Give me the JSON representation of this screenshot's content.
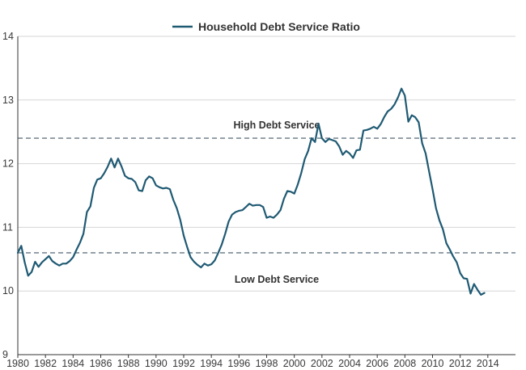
{
  "chart_data": {
    "type": "line",
    "title": "",
    "xlabel": "",
    "ylabel": "",
    "xlim": [
      1980,
      2016
    ],
    "ylim": [
      9,
      14
    ],
    "grid": true,
    "legend": "top-center",
    "x_ticks": [
      "1980",
      "1982",
      "1984",
      "1986",
      "1988",
      "1990",
      "1992",
      "1994",
      "1996",
      "1998",
      "2000",
      "2002",
      "2004",
      "2006",
      "2008",
      "2010",
      "2012",
      "2014"
    ],
    "y_ticks": [
      "9",
      "10",
      "11",
      "12",
      "13",
      "14"
    ],
    "colors": {
      "series": "#1f5a73",
      "reference": "#7d8b96",
      "grid": "#d6d6d6",
      "axis": "#333333"
    },
    "series": [
      {
        "name": "Household Debt Service Ratio",
        "x": [
          1980.0,
          1980.25,
          1980.5,
          1980.75,
          1981.0,
          1981.25,
          1981.5,
          1981.75,
          1982.0,
          1982.25,
          1982.5,
          1982.75,
          1983.0,
          1983.25,
          1983.5,
          1983.75,
          1984.0,
          1984.25,
          1984.5,
          1984.75,
          1985.0,
          1985.25,
          1985.5,
          1985.75,
          1986.0,
          1986.25,
          1986.5,
          1986.75,
          1987.0,
          1987.25,
          1987.5,
          1987.75,
          1988.0,
          1988.25,
          1988.5,
          1988.75,
          1989.0,
          1989.25,
          1989.5,
          1989.75,
          1990.0,
          1990.25,
          1990.5,
          1990.75,
          1991.0,
          1991.25,
          1991.5,
          1991.75,
          1992.0,
          1992.25,
          1992.5,
          1992.75,
          1993.0,
          1993.25,
          1993.5,
          1993.75,
          1994.0,
          1994.25,
          1994.5,
          1994.75,
          1995.0,
          1995.25,
          1995.5,
          1995.75,
          1996.0,
          1996.25,
          1996.5,
          1996.75,
          1997.0,
          1997.25,
          1997.5,
          1997.75,
          1998.0,
          1998.25,
          1998.5,
          1998.75,
          1999.0,
          1999.25,
          1999.5,
          1999.75,
          2000.0,
          2000.25,
          2000.5,
          2000.75,
          2001.0,
          2001.25,
          2001.5,
          2001.75,
          2002.0,
          2002.25,
          2002.5,
          2002.75,
          2003.0,
          2003.25,
          2003.5,
          2003.75,
          2004.0,
          2004.25,
          2004.5,
          2004.75,
          2005.0,
          2005.25,
          2005.5,
          2005.75,
          2006.0,
          2006.25,
          2006.5,
          2006.75,
          2007.0,
          2007.25,
          2007.5,
          2007.75,
          2008.0,
          2008.25,
          2008.5,
          2008.75,
          2009.0,
          2009.25,
          2009.5,
          2009.75,
          2010.0,
          2010.25,
          2010.5,
          2010.75,
          2011.0,
          2011.25,
          2011.5,
          2011.75,
          2012.0,
          2012.25,
          2012.5,
          2012.75,
          2013.0,
          2013.25,
          2013.5,
          2013.75
        ],
        "values": [
          10.6,
          10.71,
          10.45,
          10.24,
          10.3,
          10.46,
          10.38,
          10.45,
          10.5,
          10.55,
          10.47,
          10.43,
          10.4,
          10.43,
          10.43,
          10.47,
          10.53,
          10.65,
          10.76,
          10.9,
          11.24,
          11.33,
          11.62,
          11.75,
          11.77,
          11.85,
          11.95,
          12.08,
          11.94,
          12.08,
          11.96,
          11.81,
          11.77,
          11.76,
          11.71,
          11.58,
          11.57,
          11.74,
          11.8,
          11.77,
          11.66,
          11.63,
          11.61,
          11.62,
          11.6,
          11.43,
          11.3,
          11.12,
          10.87,
          10.69,
          10.53,
          10.46,
          10.41,
          10.37,
          10.43,
          10.4,
          10.42,
          10.48,
          10.6,
          10.73,
          10.9,
          11.09,
          11.2,
          11.24,
          11.26,
          11.27,
          11.32,
          11.37,
          11.34,
          11.35,
          11.35,
          11.32,
          11.15,
          11.17,
          11.15,
          11.2,
          11.27,
          11.45,
          11.57,
          11.56,
          11.53,
          11.67,
          11.85,
          12.07,
          12.2,
          12.4,
          12.34,
          12.63,
          12.4,
          12.34,
          12.39,
          12.37,
          12.35,
          12.27,
          12.14,
          12.2,
          12.16,
          12.09,
          12.21,
          12.22,
          12.52,
          12.53,
          12.55,
          12.58,
          12.55,
          12.62,
          12.73,
          12.82,
          12.86,
          12.93,
          13.04,
          13.18,
          13.07,
          12.66,
          12.76,
          12.73,
          12.65,
          12.32,
          12.16,
          11.88,
          11.6,
          11.3,
          11.11,
          10.97,
          10.75,
          10.65,
          10.54,
          10.45,
          10.28,
          10.2,
          10.19,
          9.96,
          10.11,
          10.02,
          9.94,
          9.97
        ]
      }
    ],
    "reference_lines": [
      {
        "label": "High Debt Service",
        "value": 12.4
      },
      {
        "label": "Low Debt Service",
        "value": 10.6
      }
    ]
  }
}
